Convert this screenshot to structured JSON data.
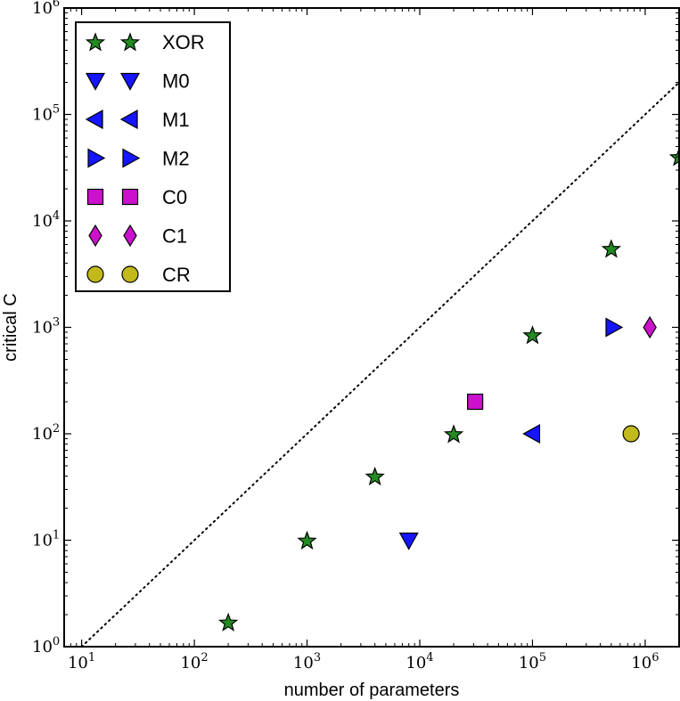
{
  "chart_data": {
    "type": "scatter",
    "title": "",
    "xlabel": "number of parameters",
    "ylabel": "critical C",
    "xscale": "log",
    "yscale": "log",
    "xlim": [
      7,
      2000000
    ],
    "ylim": [
      1,
      1000000
    ],
    "grid": false,
    "legend_position": "top-left",
    "x_ticks": [
      {
        "value": 10,
        "base": "10",
        "exp": "1"
      },
      {
        "value": 100,
        "base": "10",
        "exp": "2"
      },
      {
        "value": 1000,
        "base": "10",
        "exp": "3"
      },
      {
        "value": 10000,
        "base": "10",
        "exp": "4"
      },
      {
        "value": 100000,
        "base": "10",
        "exp": "5"
      },
      {
        "value": 1000000,
        "base": "10",
        "exp": "6"
      }
    ],
    "y_ticks": [
      {
        "value": 1,
        "base": "10",
        "exp": "0"
      },
      {
        "value": 10,
        "base": "10",
        "exp": "1"
      },
      {
        "value": 100,
        "base": "10",
        "exp": "2"
      },
      {
        "value": 1000,
        "base": "10",
        "exp": "3"
      },
      {
        "value": 10000,
        "base": "10",
        "exp": "4"
      },
      {
        "value": 100000,
        "base": "10",
        "exp": "5"
      },
      {
        "value": 1000000,
        "base": "10",
        "exp": "6"
      }
    ],
    "reference_line": {
      "style": "dotted",
      "x": [
        10,
        2000000
      ],
      "y": [
        1,
        200000
      ],
      "color": "#000000"
    },
    "series": [
      {
        "name": "XOR",
        "marker": "star",
        "color": "#228b22",
        "points": [
          [
            200,
            1.7
          ],
          [
            1000,
            10
          ],
          [
            4000,
            40
          ],
          [
            20000,
            100
          ],
          [
            100000,
            850
          ],
          [
            500000,
            5500
          ],
          [
            2000000,
            40000
          ]
        ]
      },
      {
        "name": "M0",
        "marker": "triangle-down",
        "color": "#1515ff",
        "points": [
          [
            8000,
            10
          ]
        ]
      },
      {
        "name": "M1",
        "marker": "triangle-left",
        "color": "#1515ff",
        "points": [
          [
            100000,
            100
          ]
        ]
      },
      {
        "name": "M2",
        "marker": "triangle-right",
        "color": "#1515ff",
        "points": [
          [
            520000,
            1000
          ]
        ]
      },
      {
        "name": "C0",
        "marker": "square",
        "color": "#cc11cc",
        "points": [
          [
            31000,
            200
          ]
        ]
      },
      {
        "name": "C1",
        "marker": "diamond",
        "color": "#cc11cc",
        "points": [
          [
            1100000,
            1000
          ]
        ]
      },
      {
        "name": "CR",
        "marker": "circle",
        "color": "#c2b91d",
        "points": [
          [
            750000,
            100
          ]
        ]
      }
    ]
  }
}
